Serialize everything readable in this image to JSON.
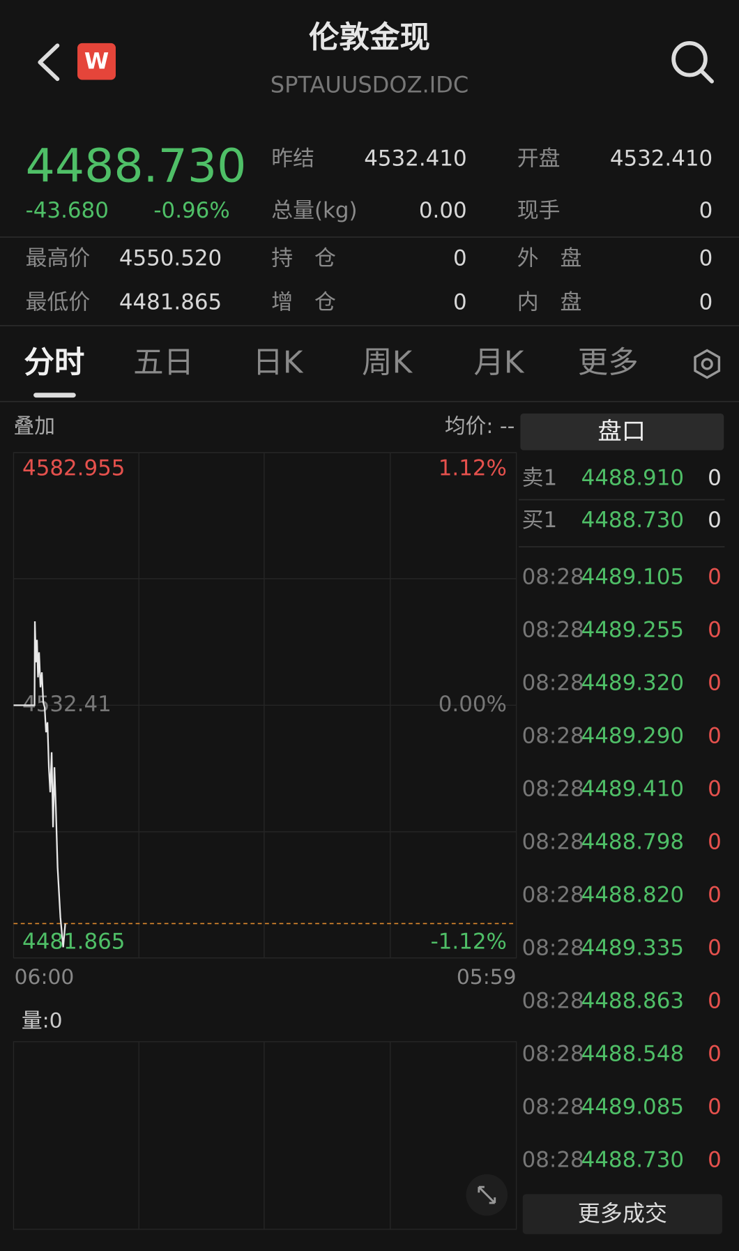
{
  "header": {
    "badge": "W",
    "title": "伦敦金现",
    "code": "SPTAUUSDOZ.IDC"
  },
  "quote": {
    "price": "4488.730",
    "change": "-43.680",
    "change_pct": "-0.96%",
    "stats": [
      {
        "label": "昨结",
        "value": "4532.410"
      },
      {
        "label": "开盘",
        "value": "4532.410"
      },
      {
        "label": "总量(kg)",
        "value": "0.00"
      },
      {
        "label": "现手",
        "value": "0"
      },
      {
        "label": "最高价",
        "value": "4550.520"
      },
      {
        "label": "持　仓",
        "value": "0"
      },
      {
        "label": "外　盘",
        "value": "0"
      },
      {
        "label": "最低价",
        "value": "4481.865"
      },
      {
        "label": "增　仓",
        "value": "0"
      },
      {
        "label": "内　盘",
        "value": "0"
      }
    ]
  },
  "tabs": [
    "分时",
    "五日",
    "日K",
    "周K",
    "月K",
    "更多"
  ],
  "chart_data": {
    "type": "line",
    "overlay_label": "叠加",
    "avg_label": "均价: --",
    "volume_label": "量:0",
    "x": [
      0,
      60,
      61,
      64,
      67,
      70,
      73,
      77,
      81,
      85,
      89,
      93,
      97,
      101,
      105,
      109,
      113,
      117,
      121,
      126,
      134,
      142,
      148
    ],
    "series": [
      {
        "color": "#e8e8e8",
        "values": [
          4532.41,
          4532.41,
          4549.2,
          4541.0,
          4545.5,
          4538.0,
          4543.0,
          4536.0,
          4539.0,
          4533.0,
          4532.0,
          4527.0,
          4529.0,
          4520.0,
          4515.0,
          4523.0,
          4508.0,
          4520.0,
          4512.0,
          4500.0,
          4490.0,
          4484.0,
          4488.73
        ]
      }
    ],
    "xlim": [
      0,
      1439
    ],
    "xticks": [
      {
        "value": 0,
        "label": "06:00"
      },
      {
        "value": 1439,
        "label": "05:59"
      }
    ],
    "ylim": [
      4481.865,
      4582.955
    ],
    "yticks": [
      4582.955,
      4532.41,
      4481.865
    ],
    "y2lim": [
      -1.12,
      1.12
    ],
    "y2ticks": [
      {
        "value": 1.12,
        "label": "1.12%"
      },
      {
        "value": 0,
        "label": "0.00%"
      },
      {
        "value": -1.12,
        "label": "-1.12%"
      }
    ],
    "grid": true
  },
  "order_book": {
    "title": "盘口",
    "levels": [
      {
        "label": "卖1",
        "price": "4488.910",
        "volume": "0"
      },
      {
        "label": "买1",
        "price": "4488.730",
        "volume": "0"
      }
    ],
    "trades": [
      {
        "time": "08:28",
        "price": "4489.105",
        "volume": "0"
      },
      {
        "time": "08:28",
        "price": "4489.255",
        "volume": "0"
      },
      {
        "time": "08:28",
        "price": "4489.320",
        "volume": "0"
      },
      {
        "time": "08:28",
        "price": "4489.290",
        "volume": "0"
      },
      {
        "time": "08:28",
        "price": "4489.410",
        "volume": "0"
      },
      {
        "time": "08:28",
        "price": "4488.798",
        "volume": "0"
      },
      {
        "time": "08:28",
        "price": "4488.820",
        "volume": "0"
      },
      {
        "time": "08:28",
        "price": "4489.335",
        "volume": "0"
      },
      {
        "time": "08:28",
        "price": "4488.863",
        "volume": "0"
      },
      {
        "time": "08:28",
        "price": "4488.548",
        "volume": "0"
      },
      {
        "time": "08:28",
        "price": "4489.085",
        "volume": "0"
      },
      {
        "time": "08:28",
        "price": "4488.730",
        "volume": "0"
      }
    ],
    "more_button": "更多成交"
  }
}
